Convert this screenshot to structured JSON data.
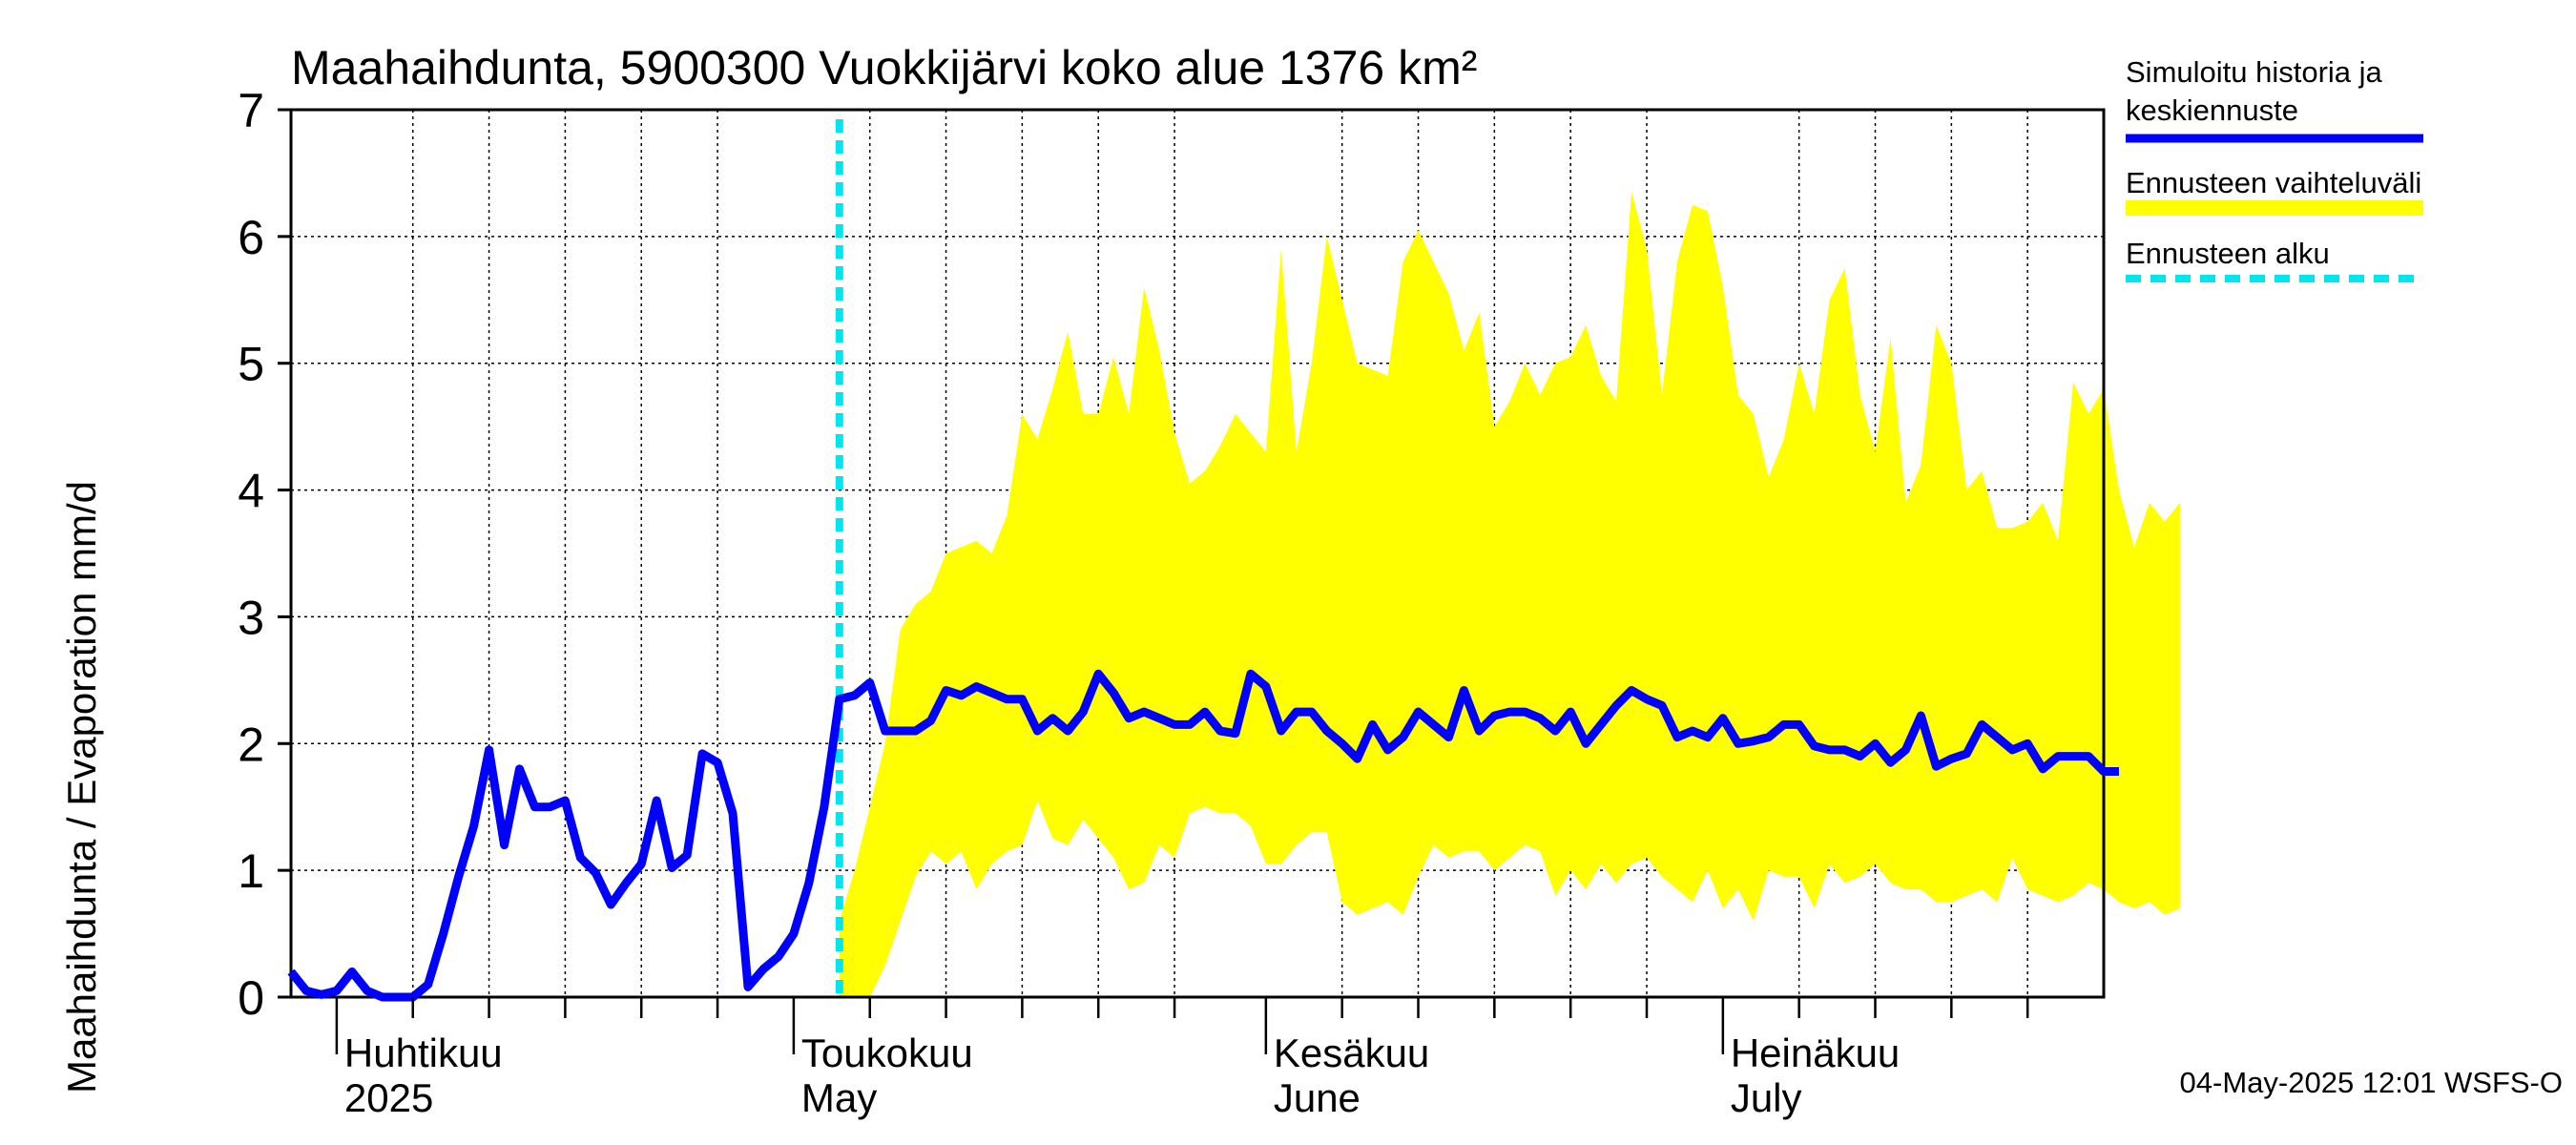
{
  "chart_data": {
    "type": "line",
    "title": "Maahaihdunta, 5900300 Vuokkijärvi koko alue 1376 km²",
    "ylabel": "Maahaihdunta / Evaporation   mm/d",
    "ylim": [
      0,
      7
    ],
    "yticks": [
      "0",
      "1",
      "2",
      "3",
      "4",
      "5",
      "6",
      "7"
    ],
    "grid": true,
    "legend_position": "right",
    "month_labels": [
      {
        "date": "2025-04-01",
        "fi": "Huhtikuu",
        "en": "2025"
      },
      {
        "date": "2025-05-01",
        "fi": "Toukokuu",
        "en": "May"
      },
      {
        "date": "2025-06-01",
        "fi": "Kesäkuu",
        "en": "June"
      },
      {
        "date": "2025-07-01",
        "fi": "Heinäkuu",
        "en": "July"
      }
    ],
    "x_range": [
      "2025-03-29",
      "2025-07-26"
    ],
    "forecast_start": "2025-05-04",
    "series": [
      {
        "name": "Simuloitu historia ja keskiennuste",
        "color": "#0000ff",
        "start_date": "2025-03-29",
        "values": [
          0.2,
          0.05,
          0.02,
          0.05,
          0.2,
          0.05,
          0,
          0,
          0,
          0.1,
          0.5,
          0.95,
          1.35,
          1.95,
          1.2,
          1.8,
          1.5,
          1.5,
          1.55,
          1.1,
          0.98,
          0.73,
          0.9,
          1.05,
          1.55,
          1.02,
          1.12,
          1.92,
          1.85,
          1.45,
          0.08,
          0.22,
          0.32,
          0.5,
          0.9,
          1.5,
          2.35,
          2.38,
          2.48,
          2.1,
          2.1,
          2.1,
          2.18,
          2.42,
          2.38,
          2.45,
          2.4,
          2.35,
          2.35,
          2.1,
          2.2,
          2.1,
          2.25,
          2.55,
          2.4,
          2.2,
          2.25,
          2.2,
          2.15,
          2.15,
          2.25,
          2.1,
          2.08,
          2.55,
          2.45,
          2.1,
          2.25,
          2.25,
          2.1,
          2.0,
          1.88,
          2.15,
          1.95,
          2.05,
          2.25,
          2.15,
          2.05,
          2.42,
          2.1,
          2.22,
          2.25,
          2.25,
          2.2,
          2.1,
          2.25,
          2.0,
          2.15,
          2.3,
          2.42,
          2.35,
          2.3,
          2.05,
          2.1,
          2.05,
          2.2,
          2.0,
          2.02,
          2.05,
          2.15,
          2.15,
          1.98,
          1.95,
          1.95,
          1.9,
          2.0,
          1.85,
          1.95,
          2.22,
          1.82,
          1.88,
          1.92,
          2.15,
          2.05,
          1.95,
          2.0,
          1.8,
          1.9,
          1.9,
          1.9,
          1.78,
          1.78
        ]
      },
      {
        "name": "Ennusteen vaihteluväli",
        "color": "#ffff00",
        "start_date": "2025-05-04",
        "upper": [
          0.6,
          1.0,
          1.5,
          2.0,
          2.9,
          3.1,
          3.2,
          3.5,
          3.55,
          3.6,
          3.5,
          3.8,
          4.6,
          4.4,
          4.8,
          5.25,
          4.6,
          4.6,
          5.05,
          4.6,
          5.6,
          5.1,
          4.45,
          4.05,
          4.15,
          4.35,
          4.6,
          4.45,
          4.3,
          5.9,
          4.3,
          5.0,
          6.0,
          5.5,
          5.0,
          4.95,
          4.9,
          5.8,
          6.05,
          5.8,
          5.55,
          5.1,
          5.4,
          4.5,
          4.7,
          5.0,
          4.75,
          5.0,
          5.05,
          5.3,
          4.9,
          4.7,
          6.35,
          5.9,
          4.75,
          5.8,
          6.25,
          6.2,
          5.6,
          4.75,
          4.6,
          4.1,
          4.4,
          5.0,
          4.6,
          5.5,
          5.75,
          4.75,
          4.3,
          5.2,
          3.9,
          4.2,
          5.3,
          5.0,
          4.0,
          4.15,
          3.7,
          3.7,
          3.75,
          3.9,
          3.6,
          4.85,
          4.6,
          4.8,
          4.0,
          3.55,
          3.9,
          3.75,
          3.9
        ],
        "lower": [
          0,
          0,
          0,
          0.25,
          0.6,
          0.95,
          1.15,
          1.05,
          1.15,
          0.85,
          1.05,
          1.15,
          1.2,
          1.55,
          1.25,
          1.2,
          1.4,
          1.25,
          1.1,
          0.85,
          0.9,
          1.2,
          1.1,
          1.45,
          1.5,
          1.45,
          1.45,
          1.35,
          1.05,
          1.05,
          1.2,
          1.3,
          1.3,
          0.75,
          0.65,
          0.7,
          0.75,
          0.65,
          0.95,
          1.2,
          1.1,
          1.15,
          1.15,
          1.0,
          1.1,
          1.2,
          1.15,
          0.8,
          1.0,
          0.85,
          1.05,
          0.9,
          1.05,
          1.1,
          0.95,
          0.85,
          0.75,
          1.0,
          0.7,
          0.85,
          0.6,
          1.0,
          0.95,
          0.95,
          0.7,
          1.05,
          0.9,
          0.95,
          1.05,
          0.9,
          0.85,
          0.85,
          0.75,
          0.75,
          0.8,
          0.85,
          0.75,
          1.1,
          0.85,
          0.8,
          0.75,
          0.8,
          0.9,
          0.85,
          0.75,
          0.7,
          0.75,
          0.65,
          0.7
        ]
      }
    ],
    "legend": [
      {
        "label": "Simuloitu historia ja keskiennuste",
        "style": "line",
        "color": "#0000ff"
      },
      {
        "label": "Ennusteen vaihteluväli",
        "style": "band",
        "color": "#ffff00"
      },
      {
        "label": "Ennusteen alku",
        "style": "dashed",
        "color": "#00e5ee"
      }
    ]
  },
  "footer": {
    "timestamp": "04-May-2025 12:01 WSFS-O"
  }
}
